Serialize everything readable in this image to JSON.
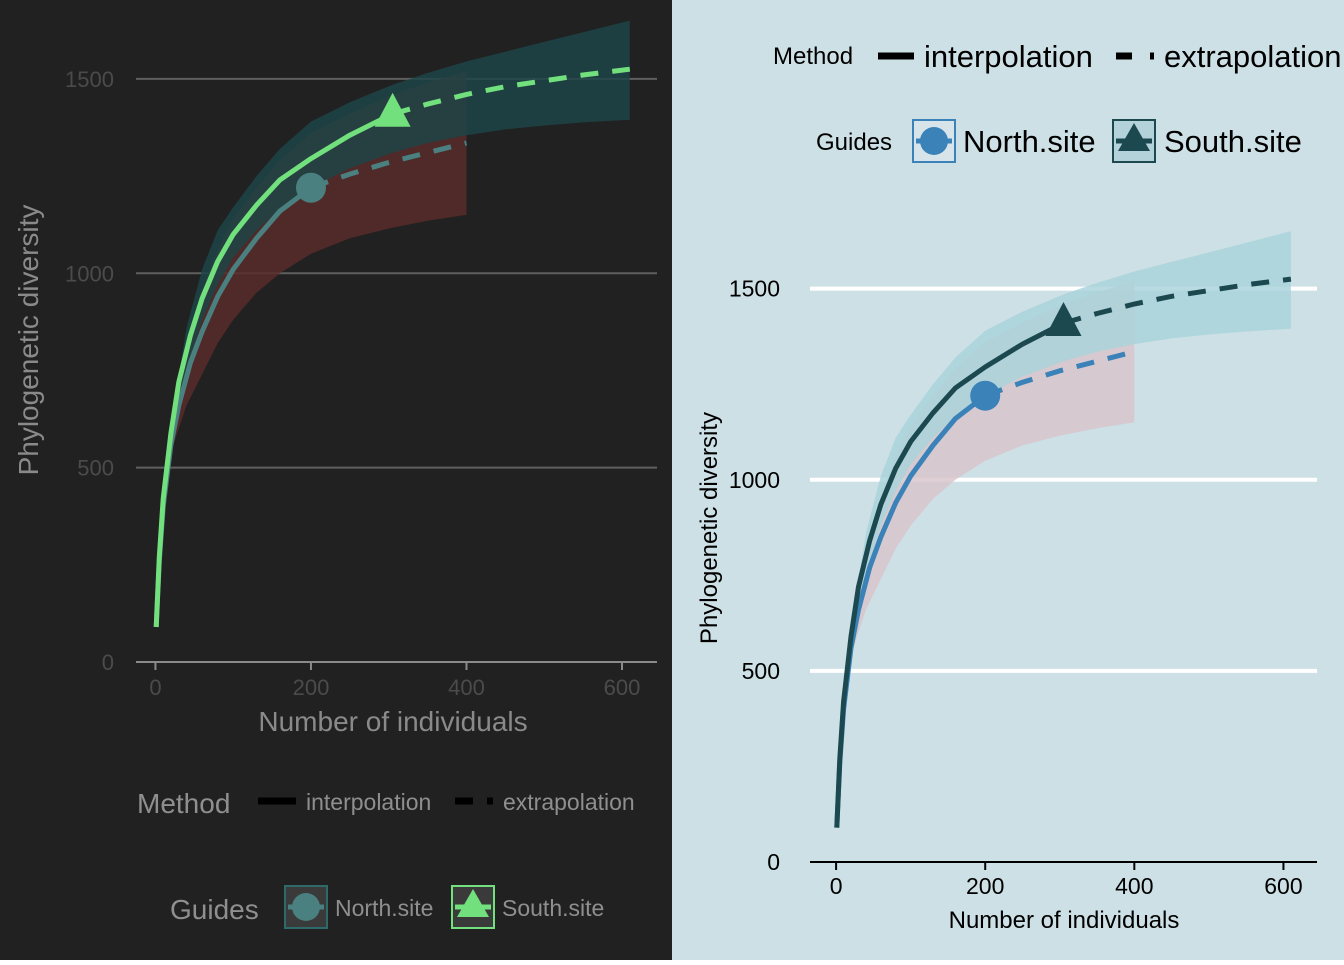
{
  "chart_data": [
    {
      "type": "line",
      "theme": "dark",
      "xlabel": "Number of individuals",
      "ylabel": "Phylogenetic diversity",
      "xlim": [
        -25,
        645
      ],
      "ylim": [
        0,
        1600
      ],
      "xticks": [
        "0",
        "200",
        "400",
        "600"
      ],
      "yticks": [
        "0",
        "500",
        "1000",
        "1500"
      ],
      "grid": "horizontal major",
      "legend_position": "bottom",
      "colors": {
        "background": "#212121",
        "grid": "#5f5f5f",
        "axis": "#8a8a8a",
        "text": "#8a8a8a",
        "legend_text": "#8f8f8f"
      },
      "legend": {
        "method_title": "Method",
        "method_items": [
          "interpolation",
          "extrapolation"
        ],
        "guides_title": "Guides",
        "guides_items": [
          "North.site",
          "South.site"
        ]
      },
      "series": [
        {
          "name": "North.site",
          "color": "#4a8080",
          "band_color": "#5a2b2b",
          "marker": "circle",
          "reference_point": {
            "x": 200,
            "y": 1220
          },
          "interpolation": {
            "x": [
              1,
              5,
              10,
              20,
              30,
              45,
              60,
              80,
              100,
              130,
              160,
              200
            ],
            "y": [
              90,
              260,
              400,
              560,
              660,
              770,
              850,
              940,
              1010,
              1090,
              1160,
              1220
            ]
          },
          "extrapolation": {
            "x": [
              200,
              250,
              300,
              350,
              400
            ],
            "y": [
              1220,
              1255,
              1285,
              1310,
              1335
            ]
          },
          "band": {
            "x": [
              1,
              10,
              20,
              40,
              60,
              80,
              100,
              130,
              160,
              200,
              250,
              300,
              350,
              400
            ],
            "lower": [
              90,
              400,
              540,
              660,
              740,
              820,
              880,
              950,
              1000,
              1050,
              1090,
              1115,
              1135,
              1150
            ],
            "upper": [
              90,
              410,
              590,
              800,
              960,
              1060,
              1140,
              1220,
              1290,
              1360,
              1410,
              1455,
              1490,
              1520
            ]
          }
        },
        {
          "name": "South.site",
          "color": "#72e07c",
          "band_color": "#1d4548",
          "marker": "triangle",
          "reference_point": {
            "x": 305,
            "y": 1410
          },
          "interpolation": {
            "x": [
              1,
              5,
              10,
              20,
              30,
              45,
              60,
              80,
              100,
              130,
              160,
              200,
              250,
              305
            ],
            "y": [
              90,
              270,
              420,
              590,
              720,
              840,
              935,
              1030,
              1100,
              1175,
              1240,
              1295,
              1355,
              1410
            ]
          },
          "extrapolation": {
            "x": [
              305,
              350,
              400,
              450,
              500,
              550,
              610
            ],
            "y": [
              1410,
              1435,
              1460,
              1480,
              1495,
              1510,
              1525
            ]
          },
          "band": {
            "x": [
              1,
              10,
              20,
              40,
              60,
              80,
              100,
              130,
              160,
              200,
              250,
              305,
              350,
              400,
              450,
              500,
              550,
              610
            ],
            "lower": [
              90,
              415,
              580,
              750,
              880,
              970,
              1040,
              1110,
              1165,
              1220,
              1270,
              1310,
              1335,
              1355,
              1370,
              1380,
              1388,
              1395
            ],
            "upper": [
              90,
              425,
              610,
              860,
              1010,
              1110,
              1170,
              1250,
              1320,
              1390,
              1440,
              1485,
              1515,
              1545,
              1570,
              1595,
              1620,
              1650
            ]
          }
        }
      ]
    },
    {
      "type": "line",
      "theme": "light",
      "xlabel": "Number of individuals",
      "ylabel": "Phylogenetic diversity",
      "xlim": [
        -35,
        645
      ],
      "ylim": [
        0,
        1800
      ],
      "xticks": [
        "0",
        "200",
        "400",
        "600"
      ],
      "yticks": [
        "0",
        "500",
        "1000",
        "1500"
      ],
      "grid": "horizontal major",
      "legend_position": "top",
      "colors": {
        "background": "#cde0e6",
        "grid": "#ffffff",
        "axis": "#000000",
        "text": "#000000"
      },
      "legend": {
        "method_title": "Method",
        "method_items": [
          "interpolation",
          "extrapolation"
        ],
        "guides_title": "Guides",
        "guides_items": [
          "North.site",
          "South.site"
        ]
      },
      "series": [
        {
          "name": "North.site",
          "color": "#3a82b8",
          "band_color": "#d8c4cb",
          "marker": "circle",
          "reference_point": {
            "x": 200,
            "y": 1220
          },
          "interpolation": {
            "x": [
              1,
              5,
              10,
              20,
              30,
              45,
              60,
              80,
              100,
              130,
              160,
              200
            ],
            "y": [
              90,
              260,
              400,
              560,
              660,
              770,
              850,
              940,
              1010,
              1090,
              1160,
              1220
            ]
          },
          "extrapolation": {
            "x": [
              200,
              250,
              300,
              350,
              400
            ],
            "y": [
              1220,
              1255,
              1285,
              1310,
              1335
            ]
          },
          "band": {
            "x": [
              1,
              10,
              20,
              40,
              60,
              80,
              100,
              130,
              160,
              200,
              250,
              300,
              350,
              400
            ],
            "lower": [
              90,
              400,
              540,
              660,
              740,
              820,
              880,
              950,
              1000,
              1050,
              1090,
              1115,
              1135,
              1150
            ],
            "upper": [
              90,
              410,
              590,
              800,
              960,
              1060,
              1140,
              1220,
              1290,
              1360,
              1410,
              1455,
              1490,
              1520
            ]
          }
        },
        {
          "name": "South.site",
          "color": "#1c4850",
          "band_color": "#a8d3da",
          "marker": "triangle",
          "reference_point": {
            "x": 305,
            "y": 1410
          },
          "interpolation": {
            "x": [
              1,
              5,
              10,
              20,
              30,
              45,
              60,
              80,
              100,
              130,
              160,
              200,
              250,
              305
            ],
            "y": [
              90,
              270,
              420,
              590,
              720,
              840,
              935,
              1030,
              1100,
              1175,
              1240,
              1295,
              1355,
              1410
            ]
          },
          "extrapolation": {
            "x": [
              305,
              350,
              400,
              450,
              500,
              550,
              610
            ],
            "y": [
              1410,
              1435,
              1460,
              1480,
              1495,
              1510,
              1525
            ]
          },
          "band": {
            "x": [
              1,
              10,
              20,
              40,
              60,
              80,
              100,
              130,
              160,
              200,
              250,
              305,
              350,
              400,
              450,
              500,
              550,
              610
            ],
            "lower": [
              90,
              415,
              580,
              750,
              880,
              970,
              1040,
              1110,
              1165,
              1220,
              1270,
              1310,
              1335,
              1355,
              1370,
              1380,
              1388,
              1395
            ],
            "upper": [
              90,
              425,
              610,
              860,
              1010,
              1110,
              1170,
              1250,
              1320,
              1390,
              1440,
              1485,
              1515,
              1545,
              1570,
              1595,
              1620,
              1650
            ]
          }
        }
      ]
    }
  ]
}
